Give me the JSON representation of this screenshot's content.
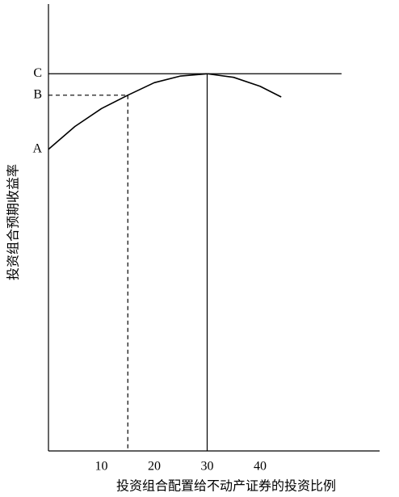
{
  "chart_data": {
    "type": "line",
    "x_label": "投资组合配置给不动产证券的投资比例",
    "y_label": "投资组合预期收益率",
    "x": [
      0,
      5,
      10,
      15,
      20,
      25,
      30,
      35,
      40,
      44
    ],
    "series": [
      {
        "color": "#000000",
        "values": [
          67.5,
          72.6,
          76.6,
          79.6,
          82.4,
          83.9,
          84.4,
          83.6,
          81.6,
          79.2
        ]
      }
    ],
    "xlim": [
      0,
      62.6
    ],
    "ylim": [
      0,
      100
    ],
    "xticks": [
      10,
      20,
      30,
      40
    ],
    "yticks": [
      {
        "value": 67.5,
        "label": "A"
      },
      {
        "value": 79.6,
        "label": "B"
      },
      {
        "value": 84.4,
        "label": "C"
      }
    ],
    "reference_lines": [
      {
        "x": 15,
        "y": 79.6,
        "dashed": true
      },
      {
        "x": 30,
        "y": 84.4,
        "dashed": false
      }
    ],
    "hline": {
      "y": 84.4,
      "x_end": 55.4
    }
  }
}
